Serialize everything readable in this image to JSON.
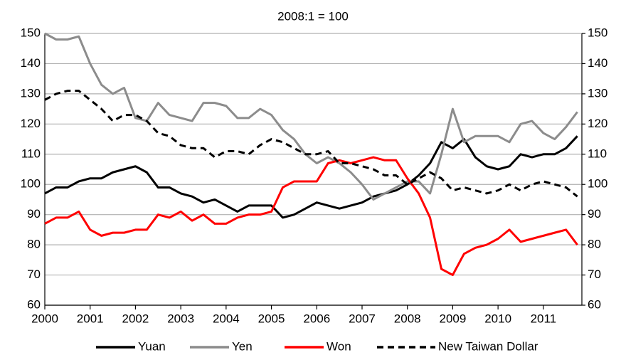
{
  "chart_data": {
    "type": "line",
    "title": "2008:1 = 100",
    "x": [
      2000,
      2000.25,
      2000.5,
      2000.75,
      2001,
      2001.25,
      2001.5,
      2001.75,
      2002,
      2002.25,
      2002.5,
      2002.75,
      2003,
      2003.25,
      2003.5,
      2003.75,
      2004,
      2004.25,
      2004.5,
      2004.75,
      2005,
      2005.25,
      2005.5,
      2005.75,
      2006,
      2006.25,
      2006.5,
      2006.75,
      2007,
      2007.25,
      2007.5,
      2007.75,
      2008,
      2008.25,
      2008.5,
      2008.75,
      2009,
      2009.25,
      2009.5,
      2009.75,
      2010,
      2010.25,
      2010.5,
      2010.75,
      2011,
      2011.25,
      2011.5,
      2011.75
    ],
    "xlim": [
      2000,
      2011.85
    ],
    "xticks": [
      2000,
      2001,
      2002,
      2003,
      2004,
      2005,
      2006,
      2007,
      2008,
      2009,
      2010,
      2011
    ],
    "ylim": [
      60,
      150
    ],
    "yticks": [
      60,
      70,
      80,
      90,
      100,
      110,
      120,
      130,
      140,
      150
    ],
    "y2lim": [
      60,
      150
    ],
    "y2ticks": [
      60,
      70,
      80,
      90,
      100,
      110,
      120,
      130,
      140,
      150
    ],
    "grid": true,
    "legend": "bottom",
    "series": [
      {
        "name": "Yuan",
        "color": "#000000",
        "dash": false,
        "values": [
          97,
          99,
          99,
          101,
          102,
          102,
          104,
          105,
          106,
          104,
          99,
          99,
          97,
          96,
          94,
          95,
          93,
          91,
          93,
          93,
          93,
          89,
          90,
          92,
          94,
          93,
          92,
          93,
          94,
          96,
          97,
          98,
          100,
          103,
          107,
          114,
          112,
          115,
          109,
          106,
          105,
          106,
          110,
          109,
          110,
          110,
          112,
          116
        ]
      },
      {
        "name": "Yen",
        "color": "#8c8c8c",
        "dash": false,
        "values": [
          150,
          148,
          148,
          149,
          140,
          133,
          130,
          132,
          122,
          121,
          127,
          123,
          122,
          121,
          127,
          127,
          126,
          122,
          122,
          125,
          123,
          118,
          115,
          110,
          107,
          109,
          107,
          104,
          100,
          95,
          97,
          99,
          101,
          101,
          97,
          110,
          125,
          114,
          116,
          116,
          116,
          114,
          120,
          121,
          117,
          115,
          119,
          124
        ]
      },
      {
        "name": "Won",
        "color": "#ff0000",
        "dash": false,
        "values": [
          87,
          89,
          89,
          91,
          85,
          83,
          84,
          84,
          85,
          85,
          90,
          89,
          91,
          88,
          90,
          87,
          87,
          89,
          90,
          90,
          91,
          99,
          101,
          101,
          101,
          107,
          108,
          107,
          108,
          109,
          108,
          108,
          102,
          97,
          89,
          72,
          70,
          77,
          79,
          80,
          82,
          85,
          81,
          82,
          83,
          84,
          85,
          80
        ]
      },
      {
        "name": "New Taiwan Dollar",
        "color": "#000000",
        "dash": true,
        "values": [
          128,
          130,
          131,
          131,
          128,
          125,
          121,
          123,
          123,
          121,
          117,
          116,
          113,
          112,
          112,
          109,
          111,
          111,
          110,
          113,
          115,
          114,
          112,
          110,
          110,
          111,
          107,
          107,
          106,
          105,
          103,
          103,
          100,
          102,
          104,
          102,
          98,
          99,
          98,
          97,
          98,
          100,
          98,
          100,
          101,
          100,
          99,
          96
        ]
      }
    ]
  }
}
